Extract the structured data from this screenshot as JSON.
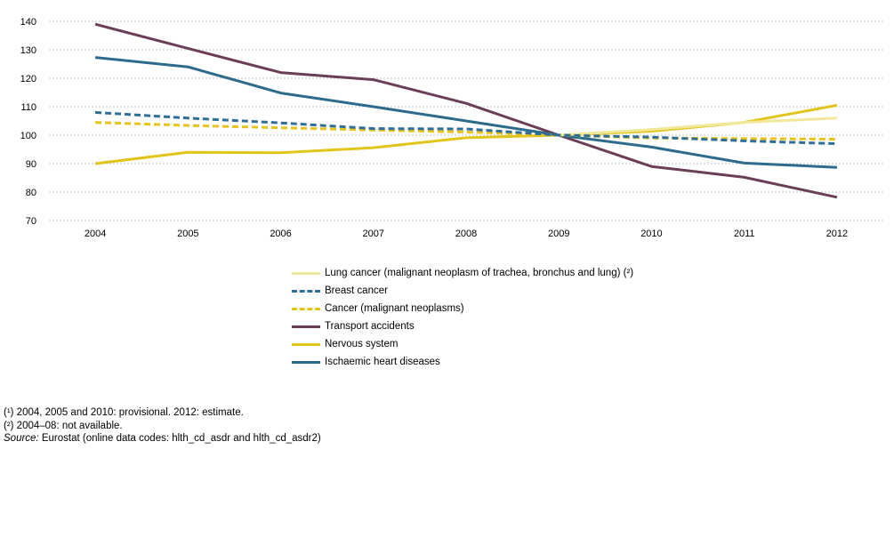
{
  "chart_data": {
    "type": "line",
    "x": [
      "2004",
      "2005",
      "2006",
      "2007",
      "2008",
      "2009",
      "2010",
      "2011",
      "2012"
    ],
    "ylim": [
      70,
      140
    ],
    "yticks": [
      70,
      80,
      90,
      100,
      110,
      120,
      130,
      140
    ],
    "grid": true,
    "legend_position": "bottom",
    "series": [
      {
        "name": "Lung cancer (malignant neoplasm of trachea, bronchus and lung) (²)",
        "color": "#f1e89a",
        "dash": false,
        "values": [
          null,
          null,
          null,
          null,
          null,
          100,
          102,
          104.5,
          106
        ]
      },
      {
        "name": "Breast cancer",
        "color": "#2e6e97",
        "dash": true,
        "values": [
          108,
          106,
          104.3,
          102.3,
          102.2,
          100,
          99.3,
          98,
          97
        ]
      },
      {
        "name": "Cancer (malignant neoplasms)",
        "color": "#e7c31b",
        "dash": true,
        "values": [
          104.5,
          103.4,
          102.6,
          101.8,
          101.1,
          100,
          99,
          98.8,
          98.6
        ]
      },
      {
        "name": "Transport accidents",
        "color": "#6b3e57",
        "dash": false,
        "values": [
          139,
          130.5,
          122,
          119.5,
          111.2,
          100,
          89,
          85.2,
          78.2
        ]
      },
      {
        "name": "Nervous system",
        "color": "#e2c51b",
        "dash": false,
        "values": [
          90,
          94,
          93.8,
          95.6,
          99.1,
          100,
          101.4,
          104.5,
          110.5
        ]
      },
      {
        "name": "Ischaemic heart diseases",
        "color": "#2d6b8c",
        "dash": false,
        "values": [
          127.3,
          124,
          114.8,
          110,
          105,
          100,
          95.8,
          90.2,
          88.7
        ]
      }
    ],
    "draw_order": [
      3,
      4,
      5,
      0,
      2,
      1
    ]
  },
  "notes": {
    "note1": "(¹) 2004, 2005 and 2010: provisional. 2012: estimate.",
    "note2": "(²) 2004–08: not available.",
    "source_label": "Source:",
    "source_text": " Eurostat (online data codes: hlth_cd_asdr and hlth_cd_asdr2)"
  }
}
